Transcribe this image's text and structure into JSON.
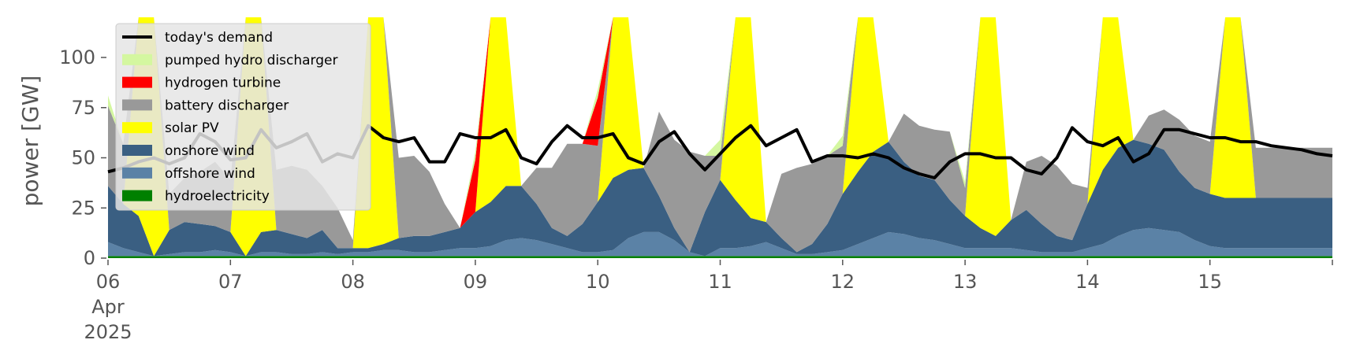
{
  "chart_data": {
    "type": "area",
    "ylabel": "power [GW]",
    "ylim": [
      0,
      120
    ],
    "yticks": [
      0,
      25,
      50,
      75,
      100
    ],
    "x_start": "2025-04-06 00:00",
    "x_end": "2025-04-16 00:00",
    "x_step_hours": 3,
    "xtick_labels": [
      {
        "day": 6,
        "label": "06",
        "sub": [
          "Apr",
          "2025"
        ]
      },
      {
        "day": 7,
        "label": "07"
      },
      {
        "day": 8,
        "label": "08"
      },
      {
        "day": 9,
        "label": "09"
      },
      {
        "day": 10,
        "label": "10"
      },
      {
        "day": 11,
        "label": "11"
      },
      {
        "day": 12,
        "label": "12"
      },
      {
        "day": 13,
        "label": "13"
      },
      {
        "day": 14,
        "label": "14"
      },
      {
        "day": 15,
        "label": "15"
      }
    ],
    "grid": false,
    "legend_position": "upper left",
    "series": [
      {
        "name": "hydroelectricity",
        "color": "#008000",
        "values": [
          1,
          1,
          1,
          1,
          1,
          1,
          1,
          1,
          1,
          1,
          1,
          1,
          1,
          1,
          1,
          1,
          1,
          1,
          1,
          1,
          1,
          1,
          1,
          1,
          1,
          1,
          1,
          1,
          1,
          1,
          1,
          1,
          1,
          1,
          1,
          1,
          1,
          1,
          1,
          1,
          1,
          1,
          1,
          1,
          1,
          1,
          1,
          1,
          1,
          1,
          1,
          1,
          1,
          1,
          1,
          1,
          1,
          1,
          1,
          1,
          1,
          1,
          1,
          1,
          1,
          1,
          1,
          1,
          1,
          1,
          1,
          1,
          1,
          1,
          1,
          1,
          1,
          1,
          1,
          1,
          1
        ]
      },
      {
        "name": "offshore wind",
        "color": "#5b82a6",
        "values": [
          7,
          4,
          2,
          0,
          1,
          2,
          2,
          3,
          2,
          0,
          2,
          2,
          1,
          1,
          2,
          1,
          2,
          2,
          3,
          3,
          2,
          2,
          3,
          4,
          4,
          5,
          8,
          9,
          8,
          6,
          4,
          2,
          2,
          3,
          9,
          12,
          12,
          8,
          2,
          0,
          4,
          4,
          5,
          7,
          4,
          1,
          1,
          2,
          3,
          6,
          9,
          12,
          11,
          9,
          8,
          6,
          4,
          4,
          4,
          4,
          3,
          2,
          2,
          2,
          4,
          6,
          10,
          13,
          14,
          13,
          12,
          8,
          5,
          4,
          4,
          4,
          4,
          4,
          4,
          4,
          4
        ]
      },
      {
        "name": "onshore wind",
        "color": "#3a5f82",
        "values": [
          28,
          22,
          18,
          0,
          12,
          15,
          14,
          12,
          10,
          0,
          10,
          11,
          10,
          8,
          11,
          3,
          2,
          2,
          3,
          6,
          8,
          8,
          9,
          10,
          18,
          22,
          27,
          26,
          18,
          8,
          6,
          14,
          25,
          36,
          34,
          32,
          18,
          6,
          0,
          22,
          34,
          24,
          14,
          10,
          5,
          1,
          5,
          14,
          28,
          36,
          43,
          45,
          36,
          31,
          30,
          22,
          16,
          10,
          6,
          14,
          20,
          14,
          8,
          6,
          22,
          37,
          44,
          45,
          42,
          40,
          30,
          26,
          26,
          25,
          25,
          25,
          25,
          25,
          25,
          25,
          25
        ]
      },
      {
        "name": "solar PV",
        "color": "#ffff00",
        "values": [
          0,
          0,
          140,
          140,
          0,
          0,
          0,
          0,
          0,
          140,
          140,
          0,
          0,
          0,
          0,
          0,
          0,
          140,
          140,
          0,
          0,
          0,
          0,
          0,
          0,
          140,
          140,
          0,
          0,
          0,
          0,
          0,
          0,
          140,
          140,
          0,
          0,
          0,
          0,
          0,
          0,
          140,
          140,
          0,
          0,
          0,
          0,
          0,
          0,
          140,
          140,
          0,
          0,
          0,
          0,
          0,
          0,
          140,
          140,
          0,
          0,
          0,
          0,
          0,
          0,
          140,
          140,
          0,
          0,
          0,
          0,
          0,
          0,
          140,
          140,
          0,
          0,
          0,
          0,
          0,
          0
        ]
      },
      {
        "name": "battery discharger",
        "color": "#999999",
        "values": [
          40,
          30,
          0,
          0,
          18,
          22,
          26,
          32,
          26,
          0,
          0,
          30,
          34,
          34,
          22,
          20,
          4,
          0,
          0,
          40,
          40,
          32,
          14,
          0,
          0,
          0,
          0,
          0,
          18,
          30,
          46,
          40,
          28,
          0,
          0,
          0,
          42,
          44,
          50,
          28,
          12,
          0,
          0,
          0,
          32,
          42,
          40,
          34,
          24,
          0,
          0,
          0,
          24,
          25,
          25,
          34,
          14,
          0,
          0,
          0,
          24,
          34,
          35,
          28,
          8,
          0,
          0,
          0,
          14,
          20,
          26,
          26,
          26,
          25,
          25,
          25,
          25,
          25,
          25,
          25,
          25
        ]
      },
      {
        "name": "hydrogen turbine",
        "color": "#ff0000",
        "values": [
          0,
          0,
          0,
          0,
          0,
          0,
          0,
          0,
          0,
          0,
          0,
          0,
          0,
          0,
          0,
          0,
          0,
          0,
          0,
          0,
          0,
          0,
          0,
          0,
          26,
          0,
          0,
          0,
          0,
          0,
          0,
          0,
          24,
          0,
          0,
          0,
          0,
          0,
          0,
          0,
          0,
          0,
          0,
          0,
          0,
          0,
          0,
          0,
          0,
          0,
          0,
          0,
          0,
          0,
          0,
          0,
          0,
          0,
          0,
          0,
          0,
          0,
          0,
          0,
          0,
          0,
          0,
          0,
          0,
          0,
          0,
          0,
          0,
          0,
          0,
          0,
          0,
          0,
          0,
          0,
          0
        ]
      },
      {
        "name": "pumped hydro discharger",
        "color": "#d4f7a0",
        "values": [
          5,
          0,
          0,
          0,
          0,
          0,
          0,
          0,
          0,
          0,
          0,
          0,
          0,
          0,
          0,
          0,
          0,
          0,
          0,
          0,
          0,
          0,
          0,
          0,
          4,
          0,
          0,
          0,
          0,
          0,
          0,
          0,
          4,
          0,
          0,
          0,
          0,
          0,
          0,
          0,
          8,
          0,
          0,
          0,
          0,
          0,
          0,
          0,
          5,
          0,
          0,
          0,
          0,
          0,
          0,
          0,
          3,
          0,
          0,
          0,
          0,
          0,
          0,
          0,
          0,
          0,
          0,
          0,
          0,
          0,
          0,
          0,
          0,
          0,
          0,
          0,
          0,
          0,
          0,
          0,
          0
        ]
      },
      {
        "name": "today's demand",
        "color": "#000000",
        "type": "line",
        "values": [
          43,
          45,
          48,
          50,
          47,
          50,
          62,
          58,
          49,
          50,
          64,
          55,
          58,
          62,
          48,
          52,
          50,
          66,
          60,
          58,
          60,
          48,
          48,
          62,
          60,
          60,
          64,
          50,
          47,
          58,
          66,
          60,
          60,
          62,
          50,
          47,
          58,
          63,
          52,
          44,
          52,
          60,
          66,
          56,
          60,
          64,
          48,
          51,
          51,
          50,
          52,
          50,
          45,
          42,
          40,
          48,
          52,
          52,
          50,
          50,
          44,
          42,
          50,
          65,
          58,
          56,
          60,
          48,
          52,
          64,
          64,
          62,
          60,
          60,
          58,
          58,
          56,
          55,
          54,
          52,
          51
        ]
      }
    ]
  }
}
